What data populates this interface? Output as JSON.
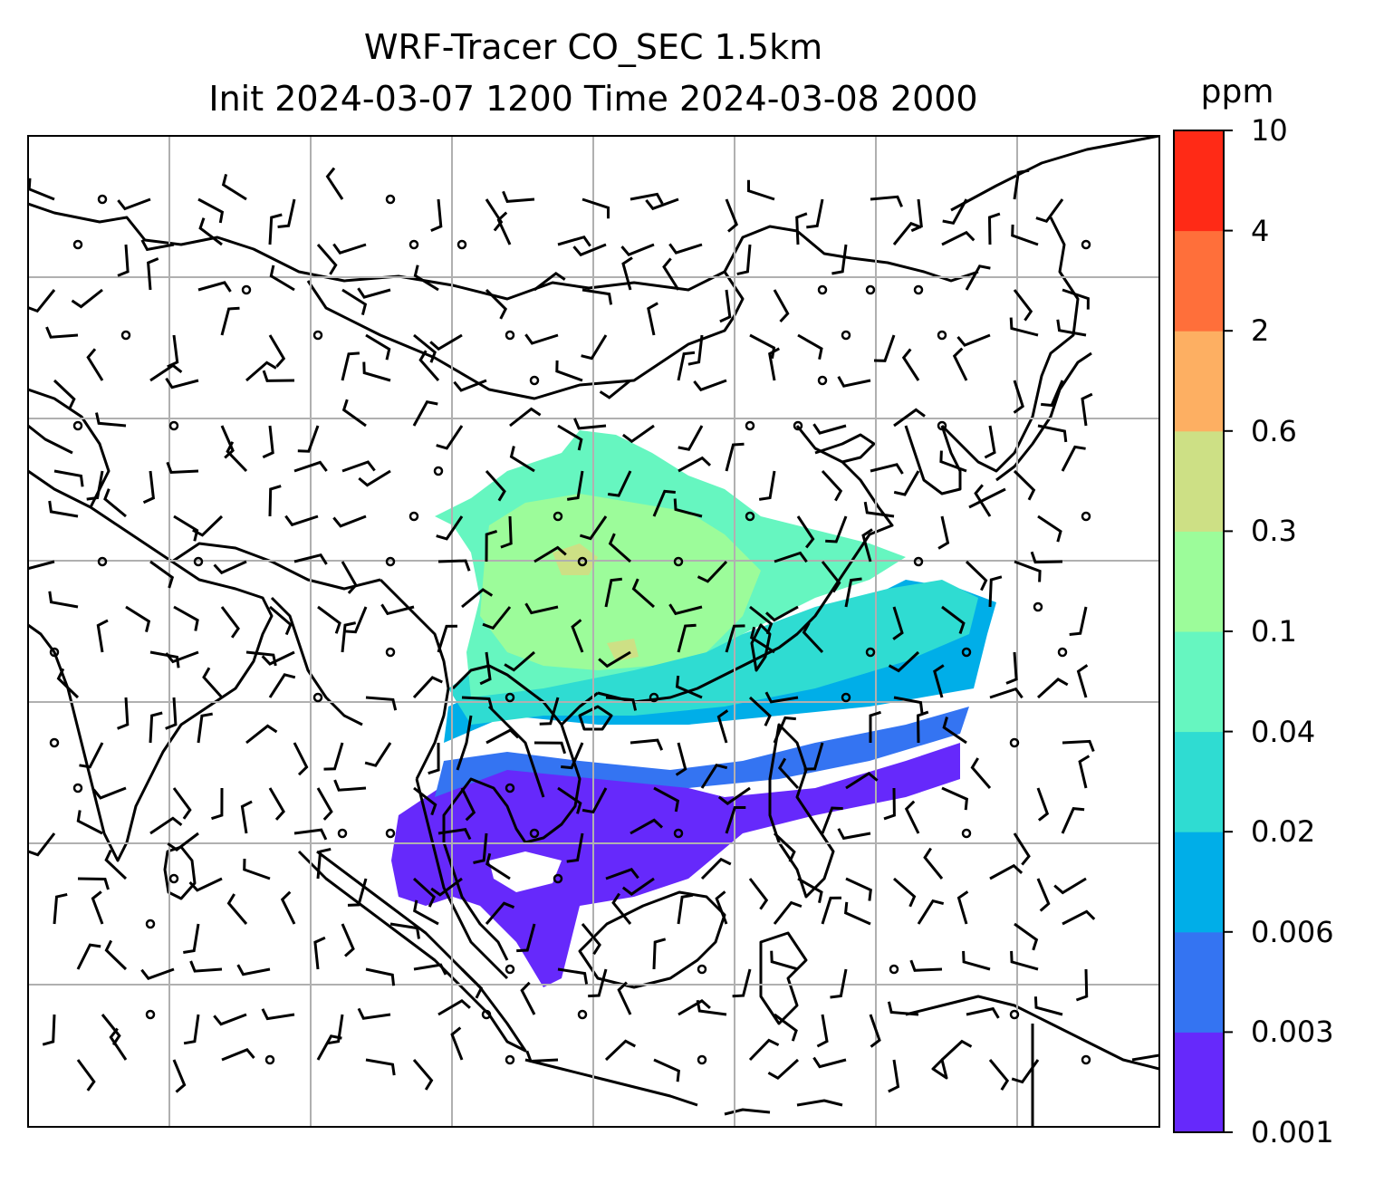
{
  "title": {
    "line1": "WRF-Tracer CO_SEC 1.5km",
    "line2": "Init 2024-03-07 1200 Time 2024-03-08 2000"
  },
  "colorbar": {
    "unit": "ppm",
    "levels": [
      "0.001",
      "0.003",
      "0.006",
      "0.02",
      "0.04",
      "0.1",
      "0.3",
      "0.6",
      "2",
      "4",
      "10"
    ],
    "colors": [
      "#6629fb",
      "#3474f2",
      "#00aee8",
      "#2fdcd2",
      "#66f6c0",
      "#9cfc9a",
      "#cde085",
      "#fdaf62",
      "#ff6f3a",
      "#ff2a16"
    ]
  },
  "map": {
    "grid": true,
    "gridlines_x": 7,
    "gridlines_y": 6,
    "layers": [
      "coastlines",
      "country-borders",
      "tracer-concentration-fill",
      "wind-barbs"
    ]
  }
}
